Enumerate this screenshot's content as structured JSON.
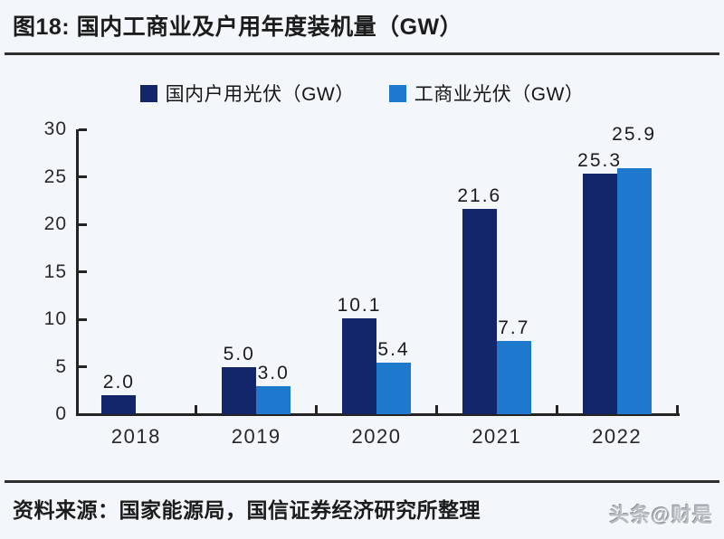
{
  "page": {
    "title": "图18: 国内工商业及户用年度装机量（GW）",
    "source": "资料来源：国家能源局，国信证券经济研究所整理",
    "watermark": "头条@财是"
  },
  "colors": {
    "background": "#f3f6fa",
    "axis": "#232323",
    "series_dark": "#122669",
    "series_light": "#1e78cc",
    "text": "#1b1b1b",
    "watermark_gray": "#b9bec4"
  },
  "chart_data": {
    "type": "bar",
    "title": "图18: 国内工商业及户用年度装机量（GW）",
    "categories": [
      "2018",
      "2019",
      "2020",
      "2021",
      "2022"
    ],
    "series": [
      {
        "name": "国内户用光伏（GW）",
        "color": "#122669",
        "values": [
          2.0,
          5.0,
          10.1,
          21.6,
          25.3
        ]
      },
      {
        "name": "工商业光伏（GW）",
        "color": "#1e78cc",
        "values": [
          null,
          3.0,
          5.4,
          7.7,
          25.9
        ]
      }
    ],
    "value_labels": [
      "2.0",
      "5.0",
      "3.0",
      "10.1",
      "5.4",
      "21.6",
      "7.7",
      "25.3",
      "25.9"
    ],
    "xlabel": "",
    "ylabel": "",
    "ylim": [
      0,
      30
    ],
    "yticks": [
      0,
      5,
      10,
      15,
      20,
      25,
      30
    ],
    "grid": false,
    "legend_position": "top",
    "bar_value_labels": true
  }
}
